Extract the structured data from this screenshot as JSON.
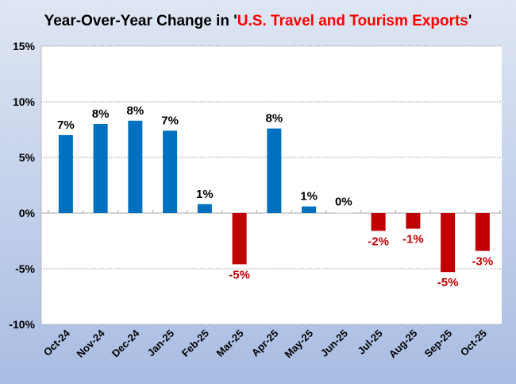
{
  "chart_data": {
    "type": "bar",
    "title_prefix": "Year-Over-Year Change in '",
    "title_highlight": "U.S. Travel and Tourism Exports",
    "title_suffix": "'",
    "categories": [
      "Oct-24",
      "Nov-24",
      "Dec-24",
      "Jan-25",
      "Feb-25",
      "Mar-25",
      "Apr-25",
      "May-25",
      "Jun-25",
      "Jul-25",
      "Aug-25",
      "Sep-25",
      "Oct-25"
    ],
    "values": [
      7.0,
      8.0,
      8.3,
      7.4,
      0.8,
      -4.6,
      7.6,
      0.6,
      0.1,
      -1.6,
      -1.4,
      -5.3,
      -3.4
    ],
    "data_labels": [
      "7%",
      "8%",
      "8%",
      "7%",
      "1%",
      "-5%",
      "8%",
      "1%",
      "0%",
      "-2%",
      "-1%",
      "-5%",
      "-3%"
    ],
    "ylim": [
      -10,
      15
    ],
    "yticks": [
      -10,
      -5,
      0,
      5,
      10,
      15
    ],
    "ytick_labels": [
      "-10%",
      "-5%",
      "0%",
      "5%",
      "10%",
      "15%"
    ],
    "grid": true,
    "colors": {
      "positive": "#0070c0",
      "negative": "#c00000",
      "title_highlight": "#ff0000",
      "negative_label": "#c00000"
    }
  }
}
